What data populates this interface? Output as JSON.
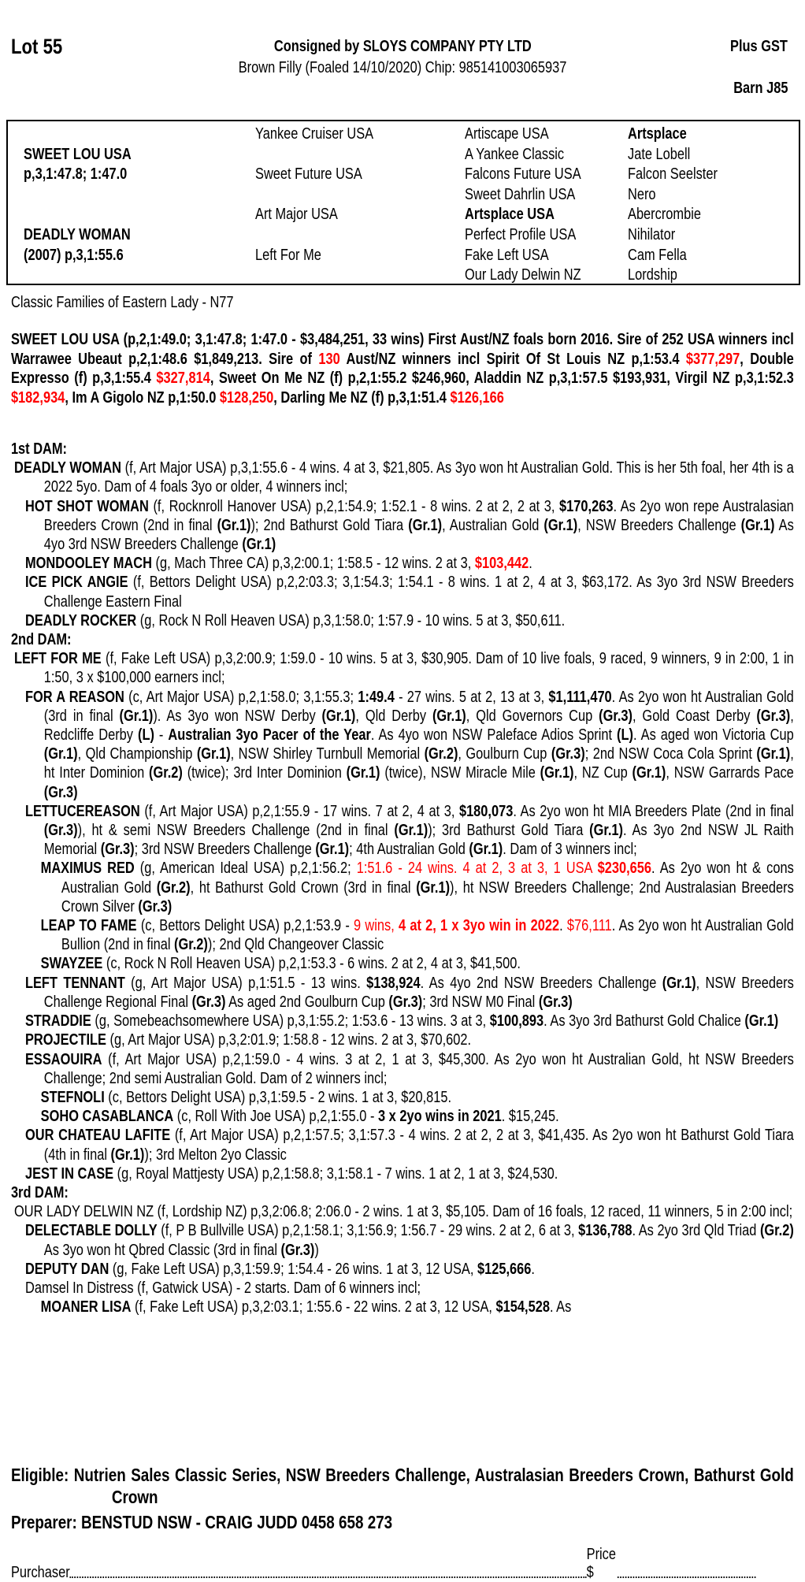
{
  "header": {
    "lot": "Lot 55",
    "consigned": "Consigned by SLOYS COMPANY PTY LTD",
    "description": "Brown Filly (Foaled 14/10/2020) Chip: 985141003065937",
    "gst": "Plus GST",
    "barn": "Barn J85"
  },
  "pedigree": {
    "sire": {
      "name": "SWEET LOU USA",
      "record": "p,3,1:47.8; 1:47.0"
    },
    "dam": {
      "name": "DEADLY WOMAN",
      "record": "(2007) p,3,1:55.6"
    },
    "gen2": [
      "Yankee Cruiser USA",
      "Sweet Future USA",
      "Art Major USA",
      "Left For Me"
    ],
    "gen3": [
      {
        "name": "Artiscape USA"
      },
      {
        "name": "A Yankee Classic"
      },
      {
        "name": "Falcons Future USA"
      },
      {
        "name": "Sweet Dahrlin USA"
      },
      {
        "name": "Artsplace USA",
        "bold": true
      },
      {
        "name": "Perfect Profile USA"
      },
      {
        "name": "Fake Left USA"
      },
      {
        "name": "Our Lady Delwin NZ"
      }
    ],
    "gen4": [
      {
        "name": "Artsplace",
        "bold": true
      },
      {
        "name": "Jate Lobell"
      },
      {
        "name": "Falcon Seelster"
      },
      {
        "name": "Nero"
      },
      {
        "name": "Abercrombie"
      },
      {
        "name": "Nihilator"
      },
      {
        "name": "Cam Fella"
      },
      {
        "name": "Lordship"
      }
    ]
  },
  "family": "Classic Families of Eastern Lady - N77",
  "colors": {
    "highlight": "#ff0000",
    "text": "#000000"
  },
  "sire_para": [
    {
      "t": "SWEET LOU USA (p,2,1:49.0; 3,1:47.8; 1:47.0 - $3,484,251, 33 wins) First Aust/NZ foals born 2016. Sire of 252 USA winners incl Warrawee Ubeaut p,2,1:48.6 $1,849,213. Sire of "
    },
    {
      "t": "130",
      "s": "r"
    },
    {
      "t": " Aust/NZ winners incl Spirit Of St Louis NZ p,1:53.4 "
    },
    {
      "t": "$377,297",
      "s": "r"
    },
    {
      "t": ", Double Expresso (f) p,3,1:55.4 "
    },
    {
      "t": "$327,814",
      "s": "r"
    },
    {
      "t": ", Sweet On Me NZ (f) p,2,1:55.2 $246,960, Aladdin NZ p,3,1:57.5 $193,931, Virgil NZ p,3,1:52.3 "
    },
    {
      "t": "$182,934",
      "s": "r"
    },
    {
      "t": ", Im A Gigolo NZ p,1:50.0 "
    },
    {
      "t": "$128,250",
      "s": "r"
    },
    {
      "t": ", Darling Me NZ (f) p,3,1:51.4 "
    },
    {
      "t": "$126,166",
      "s": "r"
    }
  ],
  "sections": [
    {
      "heading": "1st DAM:",
      "entries": [
        {
          "depth": 0,
          "runs": [
            {
              "t": "DEADLY WOMAN",
              "s": "b"
            },
            {
              "t": " (f, Art Major USA) p,3,1:55.6 - 4 wins. 4 at 3, $21,805. As 3yo won ht Australian Gold. This is her 5th foal, her 4th is a 2022 5yo. Dam of 4 foals 3yo or older, 4 winners incl;"
            }
          ]
        },
        {
          "depth": 1,
          "runs": [
            {
              "t": "HOT SHOT WOMAN",
              "s": "b"
            },
            {
              "t": " (f, Rocknroll Hanover USA) p,2,1:54.9; 1:52.1 - 8 wins. 2 at 2, 2 at 3, "
            },
            {
              "t": "$170,263",
              "s": "b"
            },
            {
              "t": ". As 2yo won repe Australasian Breeders Crown (2nd in final "
            },
            {
              "t": "(Gr.1)",
              "s": "b"
            },
            {
              "t": "); 2nd Bathurst Gold Tiara "
            },
            {
              "t": "(Gr.1)",
              "s": "b"
            },
            {
              "t": ", Australian Gold "
            },
            {
              "t": "(Gr.1)",
              "s": "b"
            },
            {
              "t": ", NSW Breeders Challenge "
            },
            {
              "t": "(Gr.1)",
              "s": "b"
            },
            {
              "t": " As 4yo 3rd NSW Breeders Challenge "
            },
            {
              "t": "(Gr.1)",
              "s": "b"
            }
          ]
        },
        {
          "depth": 1,
          "runs": [
            {
              "t": "MONDOOLEY MACH",
              "s": "b"
            },
            {
              "t": " (g, Mach Three CA) p,3,2:00.1; 1:58.5 - 12 wins. 2 at 3, "
            },
            {
              "t": "$103,442",
              "s": "rb"
            },
            {
              "t": "."
            }
          ]
        },
        {
          "depth": 1,
          "runs": [
            {
              "t": "ICE PICK ANGIE",
              "s": "b"
            },
            {
              "t": " (f, Bettors Delight USA) p,2,2:03.3; 3,1:54.3; 1:54.1 - 8 wins. 1 at 2, 4 at 3, $63,172. As 3yo 3rd NSW Breeders Challenge Eastern Final"
            }
          ]
        },
        {
          "depth": 1,
          "runs": [
            {
              "t": "DEADLY ROCKER",
              "s": "b"
            },
            {
              "t": " (g, Rock N Roll Heaven USA) p,3,1:58.0; 1:57.9 - 10 wins. 5 at 3, $50,611."
            }
          ]
        }
      ]
    },
    {
      "heading": "2nd DAM:",
      "entries": [
        {
          "depth": 0,
          "runs": [
            {
              "t": "LEFT FOR ME",
              "s": "b"
            },
            {
              "t": " (f, Fake Left USA) p,3,2:00.9; 1:59.0 - 10 wins. 5 at 3, $30,905. Dam of 10 live foals, 9 raced, 9 winners, 9 in 2:00, 1 in 1:50, 3 x $100,000 earners incl;"
            }
          ]
        },
        {
          "depth": 1,
          "runs": [
            {
              "t": "FOR A REASON",
              "s": "b"
            },
            {
              "t": " (c, Art Major USA) p,2,1:58.0; 3,1:55.3; "
            },
            {
              "t": "1:49.4",
              "s": "b"
            },
            {
              "t": " - 27 wins. 5 at 2, 13 at 3, "
            },
            {
              "t": "$1,111,470",
              "s": "b"
            },
            {
              "t": ". As 2yo won ht Australian Gold (3rd in final "
            },
            {
              "t": "(Gr.1)",
              "s": "b"
            },
            {
              "t": "). As 3yo won NSW Derby "
            },
            {
              "t": "(Gr.1)",
              "s": "b"
            },
            {
              "t": ", Qld Derby "
            },
            {
              "t": "(Gr.1)",
              "s": "b"
            },
            {
              "t": ", Qld Governors Cup "
            },
            {
              "t": "(Gr.3)",
              "s": "b"
            },
            {
              "t": ", Gold Coast Derby "
            },
            {
              "t": "(Gr.3)",
              "s": "b"
            },
            {
              "t": ", Redcliffe Derby "
            },
            {
              "t": "(L)",
              "s": "b"
            },
            {
              "t": " - "
            },
            {
              "t": "Australian 3yo Pacer of the Year",
              "s": "b"
            },
            {
              "t": ". As 4yo won NSW Paleface Adios Sprint "
            },
            {
              "t": "(L)",
              "s": "b"
            },
            {
              "t": ". As aged won Victoria Cup "
            },
            {
              "t": "(Gr.1)",
              "s": "b"
            },
            {
              "t": ", Qld Championship "
            },
            {
              "t": "(Gr.1)",
              "s": "b"
            },
            {
              "t": ", NSW Shirley Turnbull Memorial "
            },
            {
              "t": "(Gr.2)",
              "s": "b"
            },
            {
              "t": ", Goulburn Cup "
            },
            {
              "t": "(Gr.3)",
              "s": "b"
            },
            {
              "t": "; 2nd NSW Coca Cola Sprint "
            },
            {
              "t": "(Gr.1)",
              "s": "b"
            },
            {
              "t": ", ht Inter Dominion "
            },
            {
              "t": "(Gr.2)",
              "s": "b"
            },
            {
              "t": " (twice); 3rd Inter Dominion "
            },
            {
              "t": "(Gr.1)",
              "s": "b"
            },
            {
              "t": " (twice), NSW Miracle Mile "
            },
            {
              "t": "(Gr.1)",
              "s": "b"
            },
            {
              "t": ", NZ Cup "
            },
            {
              "t": "(Gr.1)",
              "s": "b"
            },
            {
              "t": ", NSW Garrards Pace "
            },
            {
              "t": "(Gr.3)",
              "s": "b"
            }
          ]
        },
        {
          "depth": 1,
          "runs": [
            {
              "t": "LETTUCEREASON",
              "s": "b"
            },
            {
              "t": " (f, Art Major USA) p,2,1:55.9 - 17 wins. 7 at 2, 4 at 3, "
            },
            {
              "t": "$180,073",
              "s": "b"
            },
            {
              "t": ". As 2yo won ht MIA Breeders Plate (2nd in final "
            },
            {
              "t": "(Gr.3)",
              "s": "b"
            },
            {
              "t": "), ht & semi NSW Breeders Challenge (2nd in final "
            },
            {
              "t": "(Gr.1)",
              "s": "b"
            },
            {
              "t": "); 3rd Bathurst Gold Tiara "
            },
            {
              "t": "(Gr.1)",
              "s": "b"
            },
            {
              "t": ". As 3yo 2nd NSW JL Raith Memorial "
            },
            {
              "t": "(Gr.3)",
              "s": "b"
            },
            {
              "t": "; 3rd NSW Breeders Challenge "
            },
            {
              "t": "(Gr.1)",
              "s": "b"
            },
            {
              "t": "; 4th Australian Gold "
            },
            {
              "t": "(Gr.1)",
              "s": "b"
            },
            {
              "t": ". Dam of 3 winners incl;"
            }
          ]
        },
        {
          "depth": 2,
          "runs": [
            {
              "t": "MAXIMUS RED",
              "s": "b"
            },
            {
              "t": " (g, American Ideal USA) p,2,1:56.2; "
            },
            {
              "t": "1:51.6 - 24 wins. 4 at 2, 3 at 3, 1 USA ",
              "s": "r"
            },
            {
              "t": "$230,656",
              "s": "rb"
            },
            {
              "t": ". As 2yo won ht & cons Australian Gold "
            },
            {
              "t": "(Gr.2)",
              "s": "b"
            },
            {
              "t": ", ht Bathurst Gold Crown (3rd in final "
            },
            {
              "t": "(Gr.1)",
              "s": "b"
            },
            {
              "t": "), ht NSW Breeders Challenge; 2nd Australasian Breeders Crown Silver "
            },
            {
              "t": "(Gr.3)",
              "s": "b"
            }
          ]
        },
        {
          "depth": 2,
          "runs": [
            {
              "t": "LEAP TO FAME",
              "s": "b"
            },
            {
              "t": " (c, Bettors Delight USA) p,2,1:53.9 - "
            },
            {
              "t": "9 wins, ",
              "s": "r"
            },
            {
              "t": "4 at 2, 1 x 3yo win in 2022",
              "s": "rb"
            },
            {
              "t": ". "
            },
            {
              "t": "$76,111",
              "s": "r"
            },
            {
              "t": ". As 2yo won ht Australian Gold Bullion (2nd in final "
            },
            {
              "t": "(Gr.2)",
              "s": "b"
            },
            {
              "t": "); 2nd Qld Changeover Classic"
            }
          ]
        },
        {
          "depth": 2,
          "runs": [
            {
              "t": "SWAYZEE",
              "s": "b"
            },
            {
              "t": " (c, Rock N Roll Heaven USA) p,2,1:53.3 - 6 wins. 2 at 2, 4 at 3, $41,500."
            }
          ]
        },
        {
          "depth": 1,
          "runs": [
            {
              "t": "LEFT TENNANT",
              "s": "b"
            },
            {
              "t": " (g, Art Major USA) p,1:51.5 - 13 wins. "
            },
            {
              "t": "$138,924",
              "s": "b"
            },
            {
              "t": ". As 4yo 2nd NSW Breeders Challenge "
            },
            {
              "t": "(Gr.1)",
              "s": "b"
            },
            {
              "t": ", NSW Breeders Challenge Regional Final "
            },
            {
              "t": "(Gr.3)",
              "s": "b"
            },
            {
              "t": " As aged 2nd Goulburn Cup "
            },
            {
              "t": "(Gr.3)",
              "s": "b"
            },
            {
              "t": "; 3rd NSW M0 Final "
            },
            {
              "t": "(Gr.3)",
              "s": "b"
            }
          ]
        },
        {
          "depth": 1,
          "runs": [
            {
              "t": "STRADDIE",
              "s": "b"
            },
            {
              "t": " (g, Somebeachsomewhere USA) p,3,1:55.2; 1:53.6 - 13 wins. 3 at 3, "
            },
            {
              "t": "$100,893",
              "s": "b"
            },
            {
              "t": ". As 3yo 3rd Bathurst Gold Chalice "
            },
            {
              "t": "(Gr.1)",
              "s": "b"
            }
          ]
        },
        {
          "depth": 1,
          "runs": [
            {
              "t": "PROJECTILE",
              "s": "b"
            },
            {
              "t": " (g, Art Major USA) p,3,2:01.9; 1:58.8 - 12 wins. 2 at 3, $70,602."
            }
          ]
        },
        {
          "depth": 1,
          "runs": [
            {
              "t": "ESSAOUIRA",
              "s": "b"
            },
            {
              "t": " (f, Art Major USA) p,2,1:59.0 - 4 wins. 3 at 2, 1 at 3, $45,300. As 2yo won ht Australian Gold, ht NSW Breeders Challenge; 2nd semi Australian Gold. Dam of 2 winners incl;"
            }
          ]
        },
        {
          "depth": 2,
          "runs": [
            {
              "t": "STEFNOLI",
              "s": "b"
            },
            {
              "t": " (c, Bettors Delight USA) p,3,1:59.5 - 2 wins. 1 at 3, $20,815."
            }
          ]
        },
        {
          "depth": 2,
          "runs": [
            {
              "t": "SOHO CASABLANCA",
              "s": "b"
            },
            {
              "t": " (c, Roll With Joe USA) p,2,1:55.0 - "
            },
            {
              "t": "3 x 2yo wins in 2021",
              "s": "b"
            },
            {
              "t": ". $15,245."
            }
          ]
        },
        {
          "depth": 1,
          "runs": [
            {
              "t": "OUR CHATEAU LAFITE",
              "s": "b"
            },
            {
              "t": " (f, Art Major USA) p,2,1:57.5; 3,1:57.3 - 4 wins. 2 at 2, 2 at 3, $41,435. As 2yo won ht Bathurst Gold Tiara (4th in final "
            },
            {
              "t": "(Gr.1)",
              "s": "b"
            },
            {
              "t": "); 3rd Melton 2yo Classic"
            }
          ]
        },
        {
          "depth": 1,
          "runs": [
            {
              "t": "JEST IN CASE",
              "s": "b"
            },
            {
              "t": " (g, Royal Mattjesty USA) p,2,1:58.8; 3,1:58.1 - 7 wins. 1 at 2, 1 at 3, $24,530."
            }
          ]
        }
      ]
    },
    {
      "heading": "3rd DAM:",
      "entries": [
        {
          "depth": 0,
          "runs": [
            {
              "t": "OUR LADY DELWIN NZ (f, Lordship NZ) p,3,2:06.8; 2:06.0 - 2 wins. 1 at 3, $5,105. Dam of 16 foals, 12 raced, 11 winners, 5 in 2:00 incl;"
            }
          ]
        },
        {
          "depth": 1,
          "runs": [
            {
              "t": "DELECTABLE DOLLY",
              "s": "b"
            },
            {
              "t": " (f, P B Bullville USA) p,2,1:58.1; 3,1:56.9; 1:56.7 - 29 wins. 2 at 2, 6 at 3, "
            },
            {
              "t": "$136,788",
              "s": "b"
            },
            {
              "t": ". As 2yo 3rd Qld Triad "
            },
            {
              "t": "(Gr.2)",
              "s": "b"
            },
            {
              "t": " As 3yo won ht Qbred Classic (3rd in final "
            },
            {
              "t": "(Gr.3)",
              "s": "b"
            },
            {
              "t": ")"
            }
          ]
        },
        {
          "depth": 1,
          "runs": [
            {
              "t": "DEPUTY DAN",
              "s": "b"
            },
            {
              "t": " (g, Fake Left USA) p,3,1:59.9; 1:54.4 - 26 wins. 1 at 3, 12 USA, "
            },
            {
              "t": "$125,666",
              "s": "b"
            },
            {
              "t": "."
            }
          ]
        },
        {
          "depth": 1,
          "runs": [
            {
              "t": "Damsel In Distress (f, Gatwick USA) - 2 starts. Dam of 6 winners incl;"
            }
          ]
        },
        {
          "depth": 2,
          "runs": [
            {
              "t": "MOANER LISA",
              "s": "b"
            },
            {
              "t": " (f, Fake Left USA) p,3,2:03.1; 1:55.6 - 22 wins. 2 at 3, 12 USA, "
            },
            {
              "t": "$154,528",
              "s": "b"
            },
            {
              "t": ". As"
            }
          ]
        }
      ]
    }
  ],
  "footer": {
    "eligible": "Eligible: Nutrien Sales Classic Series, NSW Breeders Challenge, Australasian Breeders Crown, Bathurst Gold Crown",
    "preparer": "Preparer: BENSTUD NSW - CRAIG JUDD 0458 658 273",
    "purchaser_label": "Purchaser",
    "price_label": "Price $"
  }
}
